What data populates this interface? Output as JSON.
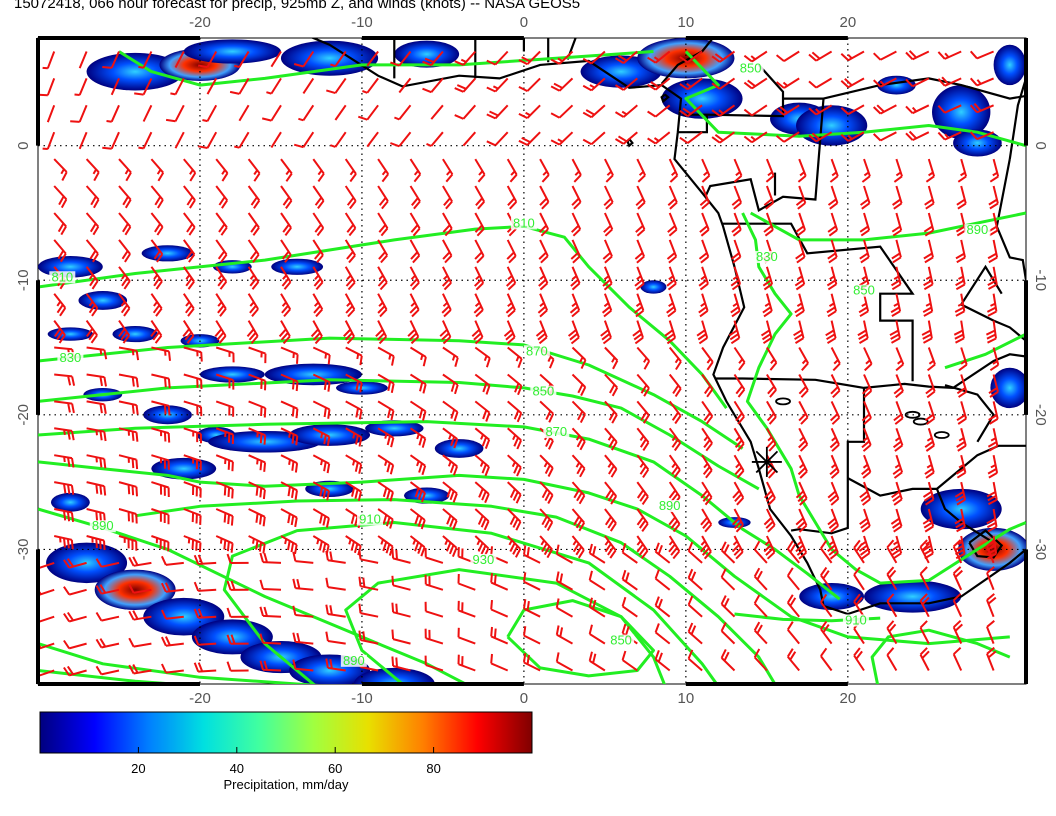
{
  "title": "15072418, 066 hour forecast for precip, 925mb Z, and winds (knots) -- NASA GEOS5",
  "map": {
    "lon_range": [
      -30,
      31
    ],
    "lat_range": [
      -40,
      8
    ],
    "grid_lons": [
      -20,
      -10,
      0,
      10,
      20
    ],
    "grid_lats": [
      0,
      -10,
      -20,
      -30
    ],
    "lon_tick_labels": [
      "-20",
      "-10",
      "0",
      "10",
      "20"
    ],
    "lat_tick_labels": [
      "0",
      "-10",
      "-20",
      "-30"
    ],
    "grid_style": "dotted",
    "marker": {
      "name": "observation-site",
      "lon": 15,
      "lat": -23.5,
      "symbol": "asterisk"
    }
  },
  "contours": {
    "color": "#22ee22",
    "variable": "925mb geopotential height (m)",
    "labels": [
      {
        "text": "810",
        "lon": -28.5,
        "lat": -10.0
      },
      {
        "text": "830",
        "lon": -28.0,
        "lat": -16.0
      },
      {
        "text": "810",
        "lon": 0,
        "lat": -6.0
      },
      {
        "text": "870",
        "lon": 0.8,
        "lat": -15.5
      },
      {
        "text": "850",
        "lon": 1.2,
        "lat": -18.5
      },
      {
        "text": "870",
        "lon": 2.0,
        "lat": -21.5
      },
      {
        "text": "890",
        "lon": -26.0,
        "lat": -28.5
      },
      {
        "text": "910",
        "lon": -9.5,
        "lat": -28.0
      },
      {
        "text": "930",
        "lon": -2.5,
        "lat": -31.0
      },
      {
        "text": "890",
        "lon": 9.0,
        "lat": -27.0
      },
      {
        "text": "850",
        "lon": 6.0,
        "lat": -37.0
      },
      {
        "text": "910",
        "lon": 20.5,
        "lat": -35.5
      },
      {
        "text": "890",
        "lon": -10.5,
        "lat": -38.5
      },
      {
        "text": "830",
        "lon": 15.0,
        "lat": -8.5
      },
      {
        "text": "850",
        "lon": 21.0,
        "lat": -11.0
      },
      {
        "text": "890",
        "lon": 28.0,
        "lat": -6.5
      },
      {
        "text": "850",
        "lon": 14.0,
        "lat": 5.5
      }
    ]
  },
  "winds": {
    "color": "#ee1111",
    "units": "knots",
    "symbol": "barbs"
  },
  "colorbar": {
    "title": "Precipitation, mm/day",
    "tick_labels": [
      "20",
      "40",
      "60",
      "80"
    ],
    "tick_values": [
      20,
      40,
      60,
      80
    ],
    "range": [
      0,
      100
    ],
    "colors": [
      "#00007f",
      "#0000ff",
      "#0080ff",
      "#00e0e0",
      "#40ffa0",
      "#a0ff40",
      "#e8e000",
      "#ff8000",
      "#ff0000",
      "#800000"
    ]
  }
}
